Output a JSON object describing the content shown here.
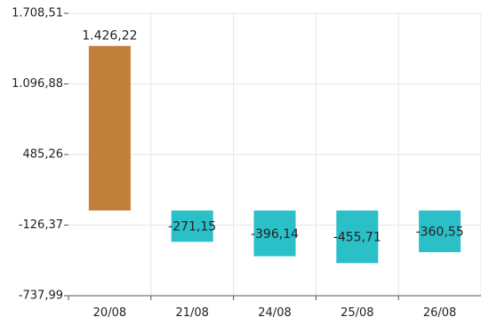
{
  "chart_data": {
    "type": "bar",
    "title": "",
    "xlabel": "",
    "ylabel": "",
    "categories": [
      "20/08",
      "21/08",
      "24/08",
      "25/08",
      "26/08"
    ],
    "values": [
      1426.22,
      -271.15,
      -396.14,
      -455.71,
      -360.55
    ],
    "value_labels": [
      "1.426,22",
      "-271,15",
      "-396,14",
      "-455,71",
      "-360,55"
    ],
    "base": 0,
    "ylim": [
      -737.99,
      1708.51
    ],
    "yticks": [
      -737.99,
      -126.37,
      485.26,
      1096.88,
      1708.51
    ],
    "ytick_labels": [
      "-737,99",
      "-126,37",
      "485,26",
      "1.096,88",
      "1.708,51"
    ],
    "grid": true,
    "colors": {
      "positive": "#c0803a",
      "negative": "#2bbfc8"
    }
  }
}
